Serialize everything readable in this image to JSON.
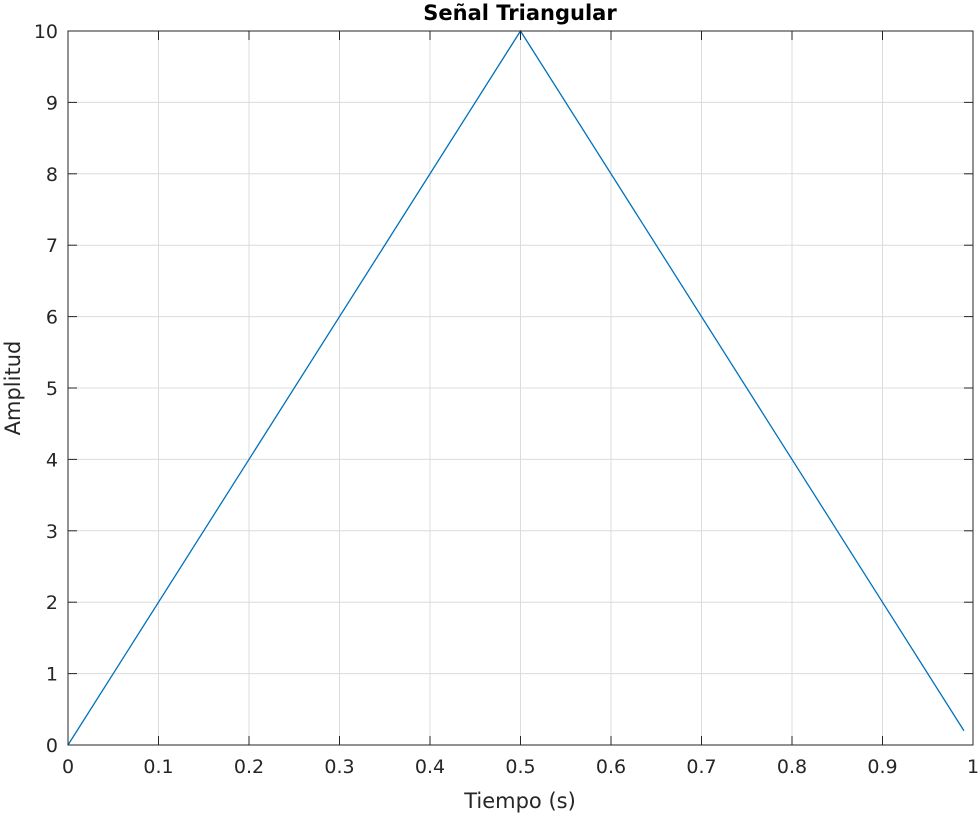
{
  "chart_data": {
    "type": "line",
    "title": "Señal Triangular",
    "xlabel": "Tiempo (s)",
    "ylabel": "Amplitud",
    "xlim": [
      0,
      1
    ],
    "ylim": [
      0,
      10
    ],
    "xticks": [
      "0",
      "0.1",
      "0.2",
      "0.3",
      "0.4",
      "0.5",
      "0.6",
      "0.7",
      "0.8",
      "0.9",
      "1"
    ],
    "yticks": [
      "0",
      "1",
      "2",
      "3",
      "4",
      "5",
      "6",
      "7",
      "8",
      "9",
      "10"
    ],
    "grid": true,
    "series": [
      {
        "color": "#0072bd",
        "x": [
          0,
          0.5,
          0.99
        ],
        "y": [
          0,
          10,
          0.2
        ]
      }
    ]
  }
}
